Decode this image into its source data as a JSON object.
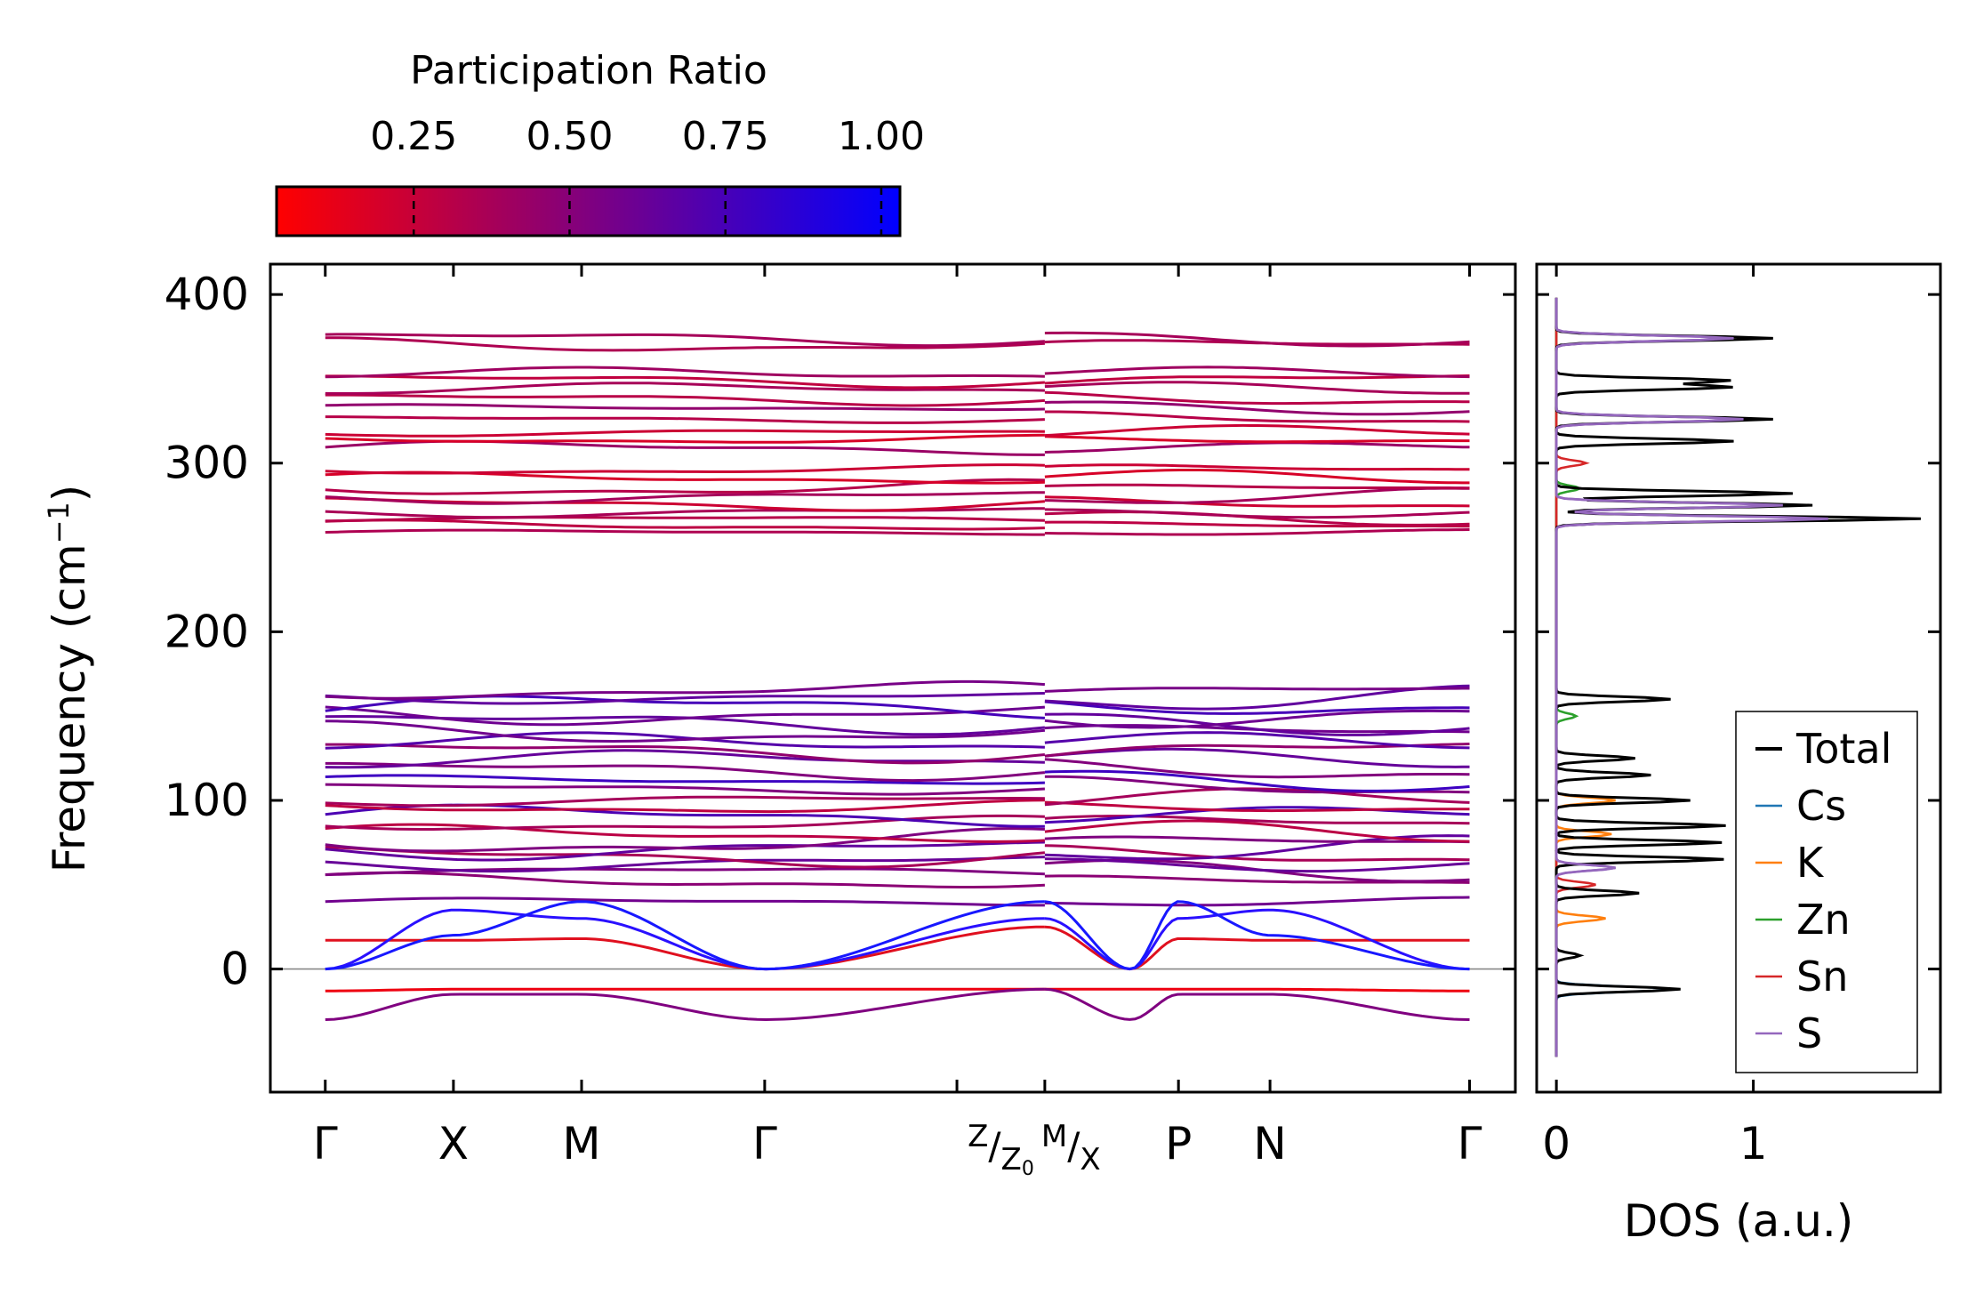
{
  "chart_data": [
    {
      "type": "line",
      "subtype": "phonon-band-structure",
      "ylabel": "Frequency (cm",
      "ylabel_sup": "−1",
      "ylabel_close": ")",
      "ylim": [
        -73,
        418
      ],
      "y_ticks": [
        0,
        100,
        200,
        300,
        400
      ],
      "path_segments": [
        {
          "labels": [
            "Γ",
            "X",
            "M",
            "Γ",
            "Z"
          ],
          "positions": [
            0,
            0.7,
            1.4,
            2.4,
            3.45
          ],
          "end": 3.93
        },
        {
          "labels": [
            "P",
            "N",
            "Γ"
          ],
          "positions": [
            4.66,
            5.16,
            6.25
          ],
          "start": 3.93,
          "end": 6.25
        }
      ],
      "special_label": {
        "z": "Z",
        "z0": "Z",
        "z0_sub": "0",
        "m": "M",
        "x": "X"
      },
      "x_range": [
        -0.3,
        6.5
      ],
      "zero_line": true,
      "colorscale": {
        "from": "#ff0000",
        "to": "#0000ff",
        "label": "participation ratio 0 → 1"
      },
      "optical_branches_upper": [
        259,
        263,
        267,
        271,
        276,
        280,
        285,
        291,
        296,
        309,
        314,
        318,
        326,
        333,
        338,
        344,
        349,
        353,
        370,
        374
      ],
      "optical_branches_lower": [
        40,
        52,
        58,
        63,
        67,
        71,
        75,
        80,
        86,
        91,
        96,
        100,
        107,
        112,
        118,
        124,
        129,
        134,
        140,
        146,
        151,
        156,
        161,
        165
      ],
      "acoustic_low": [
        {
          "name": "neg-red",
          "values": [
            -13,
            -12,
            -12,
            -12,
            -12
          ]
        },
        {
          "name": "neg-purple",
          "values": [
            -30,
            -15,
            -15,
            -30,
            -12
          ]
        },
        {
          "name": "red-17",
          "values": [
            17,
            17,
            18,
            0,
            25
          ]
        },
        {
          "name": "blue-35",
          "values": [
            0,
            35,
            30,
            0,
            30
          ]
        },
        {
          "name": "blue-40",
          "values": [
            0,
            20,
            40,
            0,
            40
          ]
        }
      ]
    },
    {
      "type": "line",
      "subtype": "density-of-states",
      "xlabel": "DOS (a.u.)",
      "x_ticks": [
        "0",
        "1"
      ],
      "xlim": [
        -0.1,
        1.95
      ],
      "ylim": [
        -73,
        418
      ],
      "series": [
        {
          "name": "Total",
          "color": "#000000"
        },
        {
          "name": "Cs",
          "color": "#1f77b4"
        },
        {
          "name": "K",
          "color": "#ff7f0e"
        },
        {
          "name": "Zn",
          "color": "#2ca02c"
        },
        {
          "name": "Sn",
          "color": "#d62728"
        },
        {
          "name": "S",
          "color": "#9467bd"
        }
      ],
      "peaks_total": [
        {
          "freq": -12,
          "value": 0.63
        },
        {
          "freq": 8,
          "value": 0.12
        },
        {
          "freq": 45,
          "value": 0.42
        },
        {
          "freq": 65,
          "value": 0.85
        },
        {
          "freq": 75,
          "value": 0.84
        },
        {
          "freq": 85,
          "value": 0.86
        },
        {
          "freq": 100,
          "value": 0.68
        },
        {
          "freq": 115,
          "value": 0.48
        },
        {
          "freq": 125,
          "value": 0.4
        },
        {
          "freq": 160,
          "value": 0.58
        },
        {
          "freq": 267,
          "value": 1.85
        },
        {
          "freq": 275,
          "value": 1.3
        },
        {
          "freq": 282,
          "value": 1.2
        },
        {
          "freq": 313,
          "value": 0.9
        },
        {
          "freq": 326,
          "value": 1.1
        },
        {
          "freq": 345,
          "value": 0.88
        },
        {
          "freq": 349,
          "value": 0.87
        },
        {
          "freq": 374,
          "value": 1.1
        }
      ],
      "peaks_partial": [
        {
          "series": "Cs",
          "freq": -12,
          "value": 0.6
        },
        {
          "series": "K",
          "freq": 30,
          "value": 0.25
        },
        {
          "series": "K",
          "freq": 80,
          "value": 0.28
        },
        {
          "series": "K",
          "freq": 100,
          "value": 0.3
        },
        {
          "series": "Zn",
          "freq": 285,
          "value": 0.12
        },
        {
          "series": "Zn",
          "freq": 150,
          "value": 0.1
        },
        {
          "series": "Sn",
          "freq": 50,
          "value": 0.2
        },
        {
          "series": "Sn",
          "freq": 300,
          "value": 0.15
        },
        {
          "series": "S",
          "freq": 60,
          "value": 0.3
        },
        {
          "series": "S",
          "freq": 267,
          "value": 1.38
        },
        {
          "series": "S",
          "freq": 275,
          "value": 1.15
        },
        {
          "series": "S",
          "freq": 326,
          "value": 0.95
        },
        {
          "series": "S",
          "freq": 374,
          "value": 0.9
        }
      ]
    }
  ],
  "colorbar": {
    "title": "Participation Ratio",
    "ticks": [
      "0.25",
      "0.50",
      "0.75",
      "1.00"
    ],
    "tick_values": [
      0.25,
      0.5,
      0.75,
      1.0
    ],
    "range": [
      0.03,
      1.03
    ]
  }
}
